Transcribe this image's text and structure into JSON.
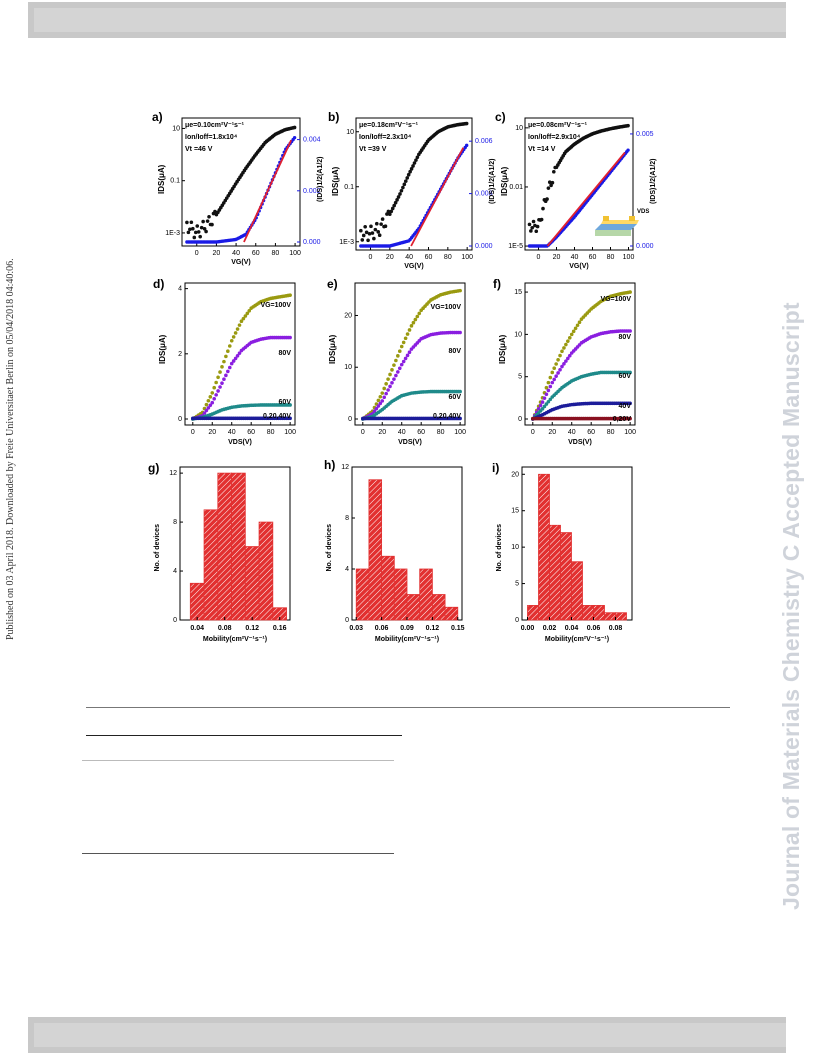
{
  "page": {
    "side_note": "Published on 03 April 2018. Downloaded by Freie Universitaet Berlin on 05/04/2018 04:40:06.",
    "watermark": "Journal of Materials Chemistry C Accepted Manuscript"
  },
  "colors": {
    "black": "#111111",
    "blue": "#1a1ae6",
    "red": "#e02030",
    "olive": "#9a9a10",
    "purple": "#8a1ee0",
    "teal": "#1f8a8a",
    "navy": "#1c1c9a",
    "darkred": "#8a1020",
    "bar": "#e23030"
  },
  "panels": {
    "a": {
      "letter": "a)",
      "mu": "μ",
      "mu_rest": "=0.10cm²V⁻¹s⁻¹",
      "mu_sub": "e",
      "onoff": "I",
      "onoff_rest": "=1.8x10⁴",
      "vt": "Vt =46 V",
      "ylabel": "IDS(μA)",
      "y2label": "(IDS)1/2(A1/2)",
      "xlabel": "VG(V)"
    },
    "b": {
      "letter": "b)",
      "mu": "μ",
      "mu_rest": "=0.18cm²V⁻¹s⁻¹",
      "mu_sub": "e",
      "onoff_rest": "=2.3x10⁴",
      "vt": "Vt =39 V",
      "ylabel": "IDS(μA)",
      "y2label": "(IDS)1/2(A1/2)",
      "xlabel": "VG(V)"
    },
    "c": {
      "letter": "c)",
      "mu": "μ",
      "mu_rest": "=0.08cm²V⁻¹s⁻¹",
      "mu_sub": "e",
      "onoff_rest": "=2.9x10⁴",
      "vt": "Vt =14 V",
      "ylabel": "IDS(μA)",
      "y2label": "(IDS)1/2(A1/2)",
      "xlabel": "VG(V)",
      "inset_label": "VDS"
    },
    "d": {
      "letter": "d)",
      "ylabel": "IDS(μA)",
      "xlabel": "VDS(V)",
      "labels": [
        "VG=100V",
        "80V",
        "60V",
        "0,20,40V"
      ]
    },
    "e": {
      "letter": "e)",
      "ylabel": "IDS(μA)",
      "xlabel": "VDS(V)",
      "labels": [
        "VG=100V",
        "80V",
        "60V",
        "0,20,40V"
      ]
    },
    "f": {
      "letter": "f)",
      "ylabel": "IDS(μA)",
      "xlabel": "VDS(V)",
      "labels": [
        "VG=100V",
        "80V",
        "60V",
        "40V",
        "0,20V"
      ]
    },
    "g": {
      "letter": "g)",
      "ylabel": "No. of devices",
      "xlabel": "Mobility(cm²V⁻¹s⁻¹)"
    },
    "h": {
      "letter": "h)",
      "ylabel": "No. of devices",
      "xlabel": "Mobility(cm²V⁻¹s⁻¹)"
    },
    "i": {
      "letter": "i)",
      "ylabel": "No. of devices",
      "xlabel": "Mobility(cm²V⁻¹s⁻¹)"
    }
  },
  "chart_data": [
    {
      "type": "line",
      "panel": "a",
      "xlabel": "VG(V)",
      "ylabel": "IDS(μA)",
      "ylabel_right": "(IDS)1/2(A1/2)",
      "yscale": "log",
      "xticks": [
        0,
        20,
        40,
        60,
        80,
        100
      ],
      "yticks_left": [
        "1E-3",
        "0.1",
        "10"
      ],
      "yticks_right": [
        "0.000",
        "0.002",
        "0.004"
      ],
      "series": [
        {
          "name": "IDS",
          "axis": "left",
          "x": [
            -10,
            0,
            10,
            20,
            30,
            40,
            50,
            60,
            70,
            80,
            90,
            100
          ],
          "y": [
            0.002,
            0.001,
            0.002,
            0.005,
            0.02,
            0.08,
            0.3,
            1.0,
            3.0,
            6.0,
            9.0,
            11.0
          ]
        },
        {
          "name": "sqrt IDS",
          "axis": "right",
          "x": [
            -10,
            20,
            40,
            50,
            60,
            70,
            80,
            90,
            100
          ],
          "y": [
            0.0,
            0.0,
            0.0001,
            0.0003,
            0.0009,
            0.0018,
            0.0027,
            0.0036,
            0.0041
          ]
        }
      ]
    },
    {
      "type": "line",
      "panel": "b",
      "xlabel": "VG(V)",
      "ylabel": "IDS(μA)",
      "ylabel_right": "(IDS)1/2(A1/2)",
      "yscale": "log",
      "xticks": [
        0,
        20,
        40,
        60,
        80,
        100
      ],
      "yticks_left": [
        "1E-3",
        "0.1",
        "10"
      ],
      "yticks_right": [
        "0.000",
        "0.003",
        "0.006"
      ],
      "series": [
        {
          "name": "IDS",
          "axis": "left",
          "x": [
            -10,
            0,
            10,
            20,
            30,
            40,
            50,
            60,
            70,
            80,
            90,
            100
          ],
          "y": [
            0.002,
            0.002,
            0.003,
            0.01,
            0.05,
            0.3,
            1.5,
            5.0,
            10.0,
            15.0,
            18.0,
            20.0
          ]
        },
        {
          "name": "sqrt IDS",
          "axis": "right",
          "x": [
            -10,
            20,
            40,
            50,
            60,
            70,
            80,
            90,
            100
          ],
          "y": [
            0.0,
            0.0,
            0.0003,
            0.001,
            0.002,
            0.003,
            0.004,
            0.005,
            0.0058
          ]
        }
      ]
    },
    {
      "type": "line",
      "panel": "c",
      "xlabel": "VG(V)",
      "ylabel": "IDS(μA)",
      "ylabel_right": "(IDS)1/2(A1/2)",
      "yscale": "log",
      "xticks": [
        0,
        20,
        40,
        60,
        80,
        100
      ],
      "yticks_left": [
        "1E-5",
        "0.01",
        "10"
      ],
      "yticks_right": [
        "0.000",
        "0.005"
      ],
      "series": [
        {
          "name": "IDS",
          "axis": "left",
          "x": [
            -10,
            0,
            10,
            20,
            30,
            40,
            50,
            60,
            70,
            80,
            90,
            100
          ],
          "y": [
            0.0001,
            0.0001,
            0.005,
            0.1,
            0.6,
            1.5,
            3.0,
            5.0,
            7.0,
            9.0,
            11.0,
            13.0
          ]
        },
        {
          "name": "sqrt IDS",
          "axis": "right",
          "x": [
            -10,
            10,
            20,
            40,
            60,
            80,
            100
          ],
          "y": [
            0.0,
            0.0,
            0.0004,
            0.0013,
            0.0023,
            0.0033,
            0.0043
          ]
        }
      ]
    },
    {
      "type": "line",
      "panel": "d",
      "xlabel": "VDS(V)",
      "ylabel": "IDS(μA)",
      "xticks": [
        0,
        20,
        40,
        60,
        80,
        100
      ],
      "yticks": [
        0,
        2,
        4
      ],
      "series": [
        {
          "name": "VG=100V",
          "x": [
            0,
            10,
            20,
            30,
            40,
            50,
            60,
            70,
            80,
            90,
            100
          ],
          "y": [
            0,
            0.2,
            0.8,
            1.6,
            2.4,
            3.0,
            3.4,
            3.6,
            3.7,
            3.75,
            3.8
          ]
        },
        {
          "name": "80V",
          "x": [
            0,
            10,
            20,
            30,
            40,
            50,
            60,
            70,
            80,
            90,
            100
          ],
          "y": [
            0,
            0.1,
            0.5,
            1.1,
            1.7,
            2.1,
            2.35,
            2.45,
            2.5,
            2.5,
            2.5
          ]
        },
        {
          "name": "60V",
          "x": [
            0,
            10,
            20,
            30,
            40,
            50,
            60,
            70,
            80,
            90,
            100
          ],
          "y": [
            0,
            0.05,
            0.15,
            0.28,
            0.36,
            0.4,
            0.42,
            0.43,
            0.43,
            0.43,
            0.43
          ]
        },
        {
          "name": "0,20,40V",
          "x": [
            0,
            100
          ],
          "y": [
            0.02,
            0.02
          ]
        }
      ]
    },
    {
      "type": "line",
      "panel": "e",
      "xlabel": "VDS(V)",
      "ylabel": "IDS(μA)",
      "xticks": [
        0,
        20,
        40,
        60,
        80,
        100
      ],
      "yticks": [
        0,
        10,
        20
      ],
      "series": [
        {
          "name": "VG=100V",
          "x": [
            0,
            10,
            20,
            30,
            40,
            50,
            60,
            70,
            80,
            90,
            100
          ],
          "y": [
            0,
            1.5,
            5,
            9.5,
            14,
            18,
            21,
            23,
            24,
            24.5,
            24.8
          ]
        },
        {
          "name": "80V",
          "x": [
            0,
            10,
            20,
            30,
            40,
            50,
            60,
            70,
            80,
            90,
            100
          ],
          "y": [
            0,
            1,
            3.5,
            7,
            10.5,
            13.5,
            15.5,
            16.3,
            16.6,
            16.7,
            16.7
          ]
        },
        {
          "name": "60V",
          "x": [
            0,
            10,
            20,
            30,
            40,
            50,
            60,
            70,
            80,
            90,
            100
          ],
          "y": [
            0,
            0.5,
            1.8,
            3.4,
            4.5,
            5.0,
            5.2,
            5.3,
            5.3,
            5.3,
            5.3
          ]
        },
        {
          "name": "0,20,40V",
          "x": [
            0,
            100
          ],
          "y": [
            0.1,
            0.1
          ]
        }
      ]
    },
    {
      "type": "line",
      "panel": "f",
      "xlabel": "VDS(V)",
      "ylabel": "IDS(μA)",
      "xticks": [
        0,
        20,
        40,
        60,
        80,
        100
      ],
      "yticks": [
        0,
        5,
        10,
        15
      ],
      "series": [
        {
          "name": "VG=100V",
          "x": [
            0,
            10,
            20,
            30,
            40,
            50,
            60,
            70,
            80,
            90,
            100
          ],
          "y": [
            0,
            2.5,
            5.5,
            8,
            10,
            11.8,
            13,
            13.9,
            14.5,
            14.8,
            15
          ]
        },
        {
          "name": "80V",
          "x": [
            0,
            10,
            20,
            30,
            40,
            50,
            60,
            70,
            80,
            90,
            100
          ],
          "y": [
            0,
            2,
            4.3,
            6.2,
            7.8,
            9,
            9.7,
            10.1,
            10.3,
            10.4,
            10.4
          ]
        },
        {
          "name": "60V",
          "x": [
            0,
            10,
            20,
            30,
            40,
            50,
            60,
            70,
            80,
            90,
            100
          ],
          "y": [
            0,
            1.2,
            2.6,
            3.7,
            4.5,
            5.0,
            5.3,
            5.5,
            5.5,
            5.5,
            5.5
          ]
        },
        {
          "name": "40V",
          "x": [
            0,
            10,
            20,
            30,
            40,
            50,
            60,
            70,
            80,
            90,
            100
          ],
          "y": [
            0,
            0.5,
            1.1,
            1.5,
            1.7,
            1.8,
            1.85,
            1.85,
            1.85,
            1.85,
            1.85
          ]
        },
        {
          "name": "0,20V",
          "x": [
            0,
            100
          ],
          "y": [
            0.05,
            0.05
          ]
        }
      ]
    },
    {
      "type": "bar",
      "panel": "g",
      "xlabel": "Mobility(cm²V⁻¹s⁻¹)",
      "ylabel": "No. of devices",
      "xticks": [
        "0.04",
        "0.08",
        "0.12",
        "0.16"
      ],
      "yticks": [
        0,
        4,
        8,
        12
      ],
      "bins": [
        [
          0.02,
          0.03
        ],
        [
          0.03,
          0.05
        ],
        [
          0.05,
          0.07
        ],
        [
          0.07,
          0.09
        ],
        [
          0.09,
          0.11
        ],
        [
          0.11,
          0.13
        ],
        [
          0.13,
          0.15
        ],
        [
          0.15,
          0.17
        ]
      ],
      "values": [
        0,
        3,
        9,
        12,
        12,
        6,
        8,
        1
      ],
      "xlim": [
        0.015,
        0.175
      ],
      "ylim": [
        0,
        12.5
      ]
    },
    {
      "type": "bar",
      "panel": "h",
      "xlabel": "Mobility(cm²V⁻¹s⁻¹)",
      "ylabel": "No. of devices",
      "xticks": [
        "0.03",
        "0.06",
        "0.09",
        "0.12",
        "0.15"
      ],
      "yticks": [
        0,
        4,
        8,
        12
      ],
      "bins": [
        [
          0.03,
          0.045
        ],
        [
          0.045,
          0.06
        ],
        [
          0.06,
          0.075
        ],
        [
          0.075,
          0.09
        ],
        [
          0.09,
          0.105
        ],
        [
          0.105,
          0.12
        ],
        [
          0.12,
          0.135
        ],
        [
          0.135,
          0.15
        ]
      ],
      "values": [
        4,
        11,
        5,
        4,
        2,
        4,
        2,
        1
      ],
      "xlim": [
        0.025,
        0.155
      ],
      "ylim": [
        0,
        12
      ]
    },
    {
      "type": "bar",
      "panel": "i",
      "xlabel": "Mobility(cm²V⁻¹s⁻¹)",
      "ylabel": "No. of devices",
      "xticks": [
        "0.00",
        "0.02",
        "0.04",
        "0.06",
        "0.08"
      ],
      "yticks": [
        0,
        5,
        10,
        15,
        20
      ],
      "bins": [
        [
          0.0,
          0.01
        ],
        [
          0.01,
          0.02
        ],
        [
          0.02,
          0.03
        ],
        [
          0.03,
          0.04
        ],
        [
          0.04,
          0.05
        ],
        [
          0.05,
          0.06
        ],
        [
          0.06,
          0.07
        ],
        [
          0.07,
          0.08
        ],
        [
          0.08,
          0.09
        ]
      ],
      "values": [
        2,
        20,
        13,
        12,
        8,
        2,
        2,
        1,
        1
      ],
      "xlim": [
        -0.005,
        0.095
      ],
      "ylim": [
        0,
        21
      ]
    }
  ]
}
